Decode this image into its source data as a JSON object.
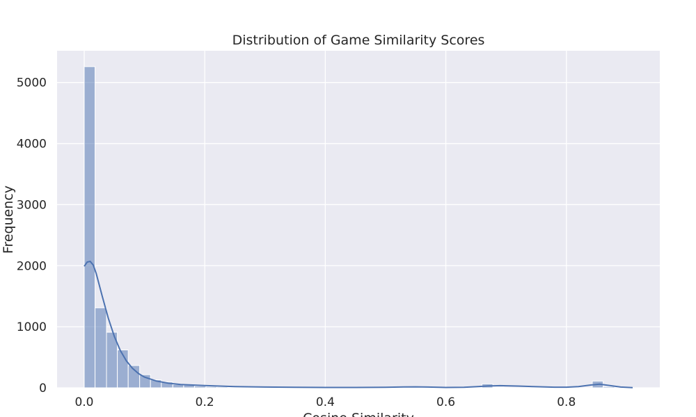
{
  "chart_data": {
    "type": "bar",
    "subtype": "histogram-with-kde",
    "title": "Distribution of Game Similarity Scores",
    "xlabel": "Cosine Similarity",
    "ylabel": "Frequency",
    "xlim": [
      -0.045,
      0.955
    ],
    "ylim": [
      0,
      5520
    ],
    "xticks": [
      0.0,
      0.2,
      0.4,
      0.6,
      0.8
    ],
    "xtick_labels": [
      "0.0",
      "0.2",
      "0.4",
      "0.6",
      "0.8"
    ],
    "yticks": [
      0,
      1000,
      2000,
      3000,
      4000,
      5000
    ],
    "ytick_labels": [
      "0",
      "1000",
      "2000",
      "3000",
      "4000",
      "5000"
    ],
    "grid": true,
    "bin_width": 0.0183,
    "bins": [
      {
        "x0": 0.0,
        "x1": 0.018,
        "count": 5260
      },
      {
        "x0": 0.018,
        "x1": 0.037,
        "count": 1310
      },
      {
        "x0": 0.037,
        "x1": 0.055,
        "count": 910
      },
      {
        "x0": 0.055,
        "x1": 0.073,
        "count": 620
      },
      {
        "x0": 0.073,
        "x1": 0.092,
        "count": 365
      },
      {
        "x0": 0.092,
        "x1": 0.11,
        "count": 215
      },
      {
        "x0": 0.11,
        "x1": 0.128,
        "count": 130
      },
      {
        "x0": 0.128,
        "x1": 0.147,
        "count": 95
      },
      {
        "x0": 0.147,
        "x1": 0.165,
        "count": 55
      },
      {
        "x0": 0.165,
        "x1": 0.183,
        "count": 45
      },
      {
        "x0": 0.183,
        "x1": 0.202,
        "count": 30
      },
      {
        "x0": 0.202,
        "x1": 0.22,
        "count": 20
      },
      {
        "x0": 0.22,
        "x1": 0.238,
        "count": 15
      },
      {
        "x0": 0.238,
        "x1": 0.257,
        "count": 10
      },
      {
        "x0": 0.257,
        "x1": 0.275,
        "count": 8
      },
      {
        "x0": 0.275,
        "x1": 0.293,
        "count": 6
      },
      {
        "x0": 0.293,
        "x1": 0.312,
        "count": 5
      },
      {
        "x0": 0.312,
        "x1": 0.33,
        "count": 4
      },
      {
        "x0": 0.33,
        "x1": 0.348,
        "count": 3
      },
      {
        "x0": 0.348,
        "x1": 0.367,
        "count": 3
      },
      {
        "x0": 0.367,
        "x1": 0.385,
        "count": 2
      },
      {
        "x0": 0.54,
        "x1": 0.559,
        "count": 8
      },
      {
        "x0": 0.66,
        "x1": 0.678,
        "count": 65
      },
      {
        "x0": 0.678,
        "x1": 0.696,
        "count": 10
      },
      {
        "x0": 0.843,
        "x1": 0.861,
        "count": 110
      },
      {
        "x0": 0.861,
        "x1": 0.88,
        "count": 20
      }
    ],
    "kde": {
      "x": [
        0.0,
        0.005,
        0.01,
        0.015,
        0.02,
        0.03,
        0.04,
        0.05,
        0.06,
        0.07,
        0.08,
        0.09,
        0.1,
        0.12,
        0.14,
        0.16,
        0.18,
        0.2,
        0.22,
        0.25,
        0.3,
        0.35,
        0.4,
        0.45,
        0.5,
        0.53,
        0.55,
        0.57,
        0.6,
        0.63,
        0.65,
        0.67,
        0.69,
        0.72,
        0.75,
        0.78,
        0.8,
        0.82,
        0.84,
        0.855,
        0.87,
        0.89,
        0.91
      ],
      "y": [
        1990,
        2060,
        2070,
        2010,
        1870,
        1500,
        1140,
        840,
        610,
        440,
        320,
        235,
        175,
        110,
        75,
        55,
        45,
        38,
        30,
        20,
        12,
        8,
        6,
        6,
        8,
        14,
        16,
        12,
        6,
        8,
        18,
        30,
        35,
        28,
        18,
        10,
        10,
        20,
        45,
        60,
        40,
        12,
        3
      ]
    },
    "colors": {
      "bar_fill": "#4c72b0",
      "bar_opacity": 0.5,
      "bar_edge": "#ffffff",
      "kde_line": "#4c72b0",
      "plot_background": "#eaeaf2",
      "grid": "#ffffff"
    }
  }
}
